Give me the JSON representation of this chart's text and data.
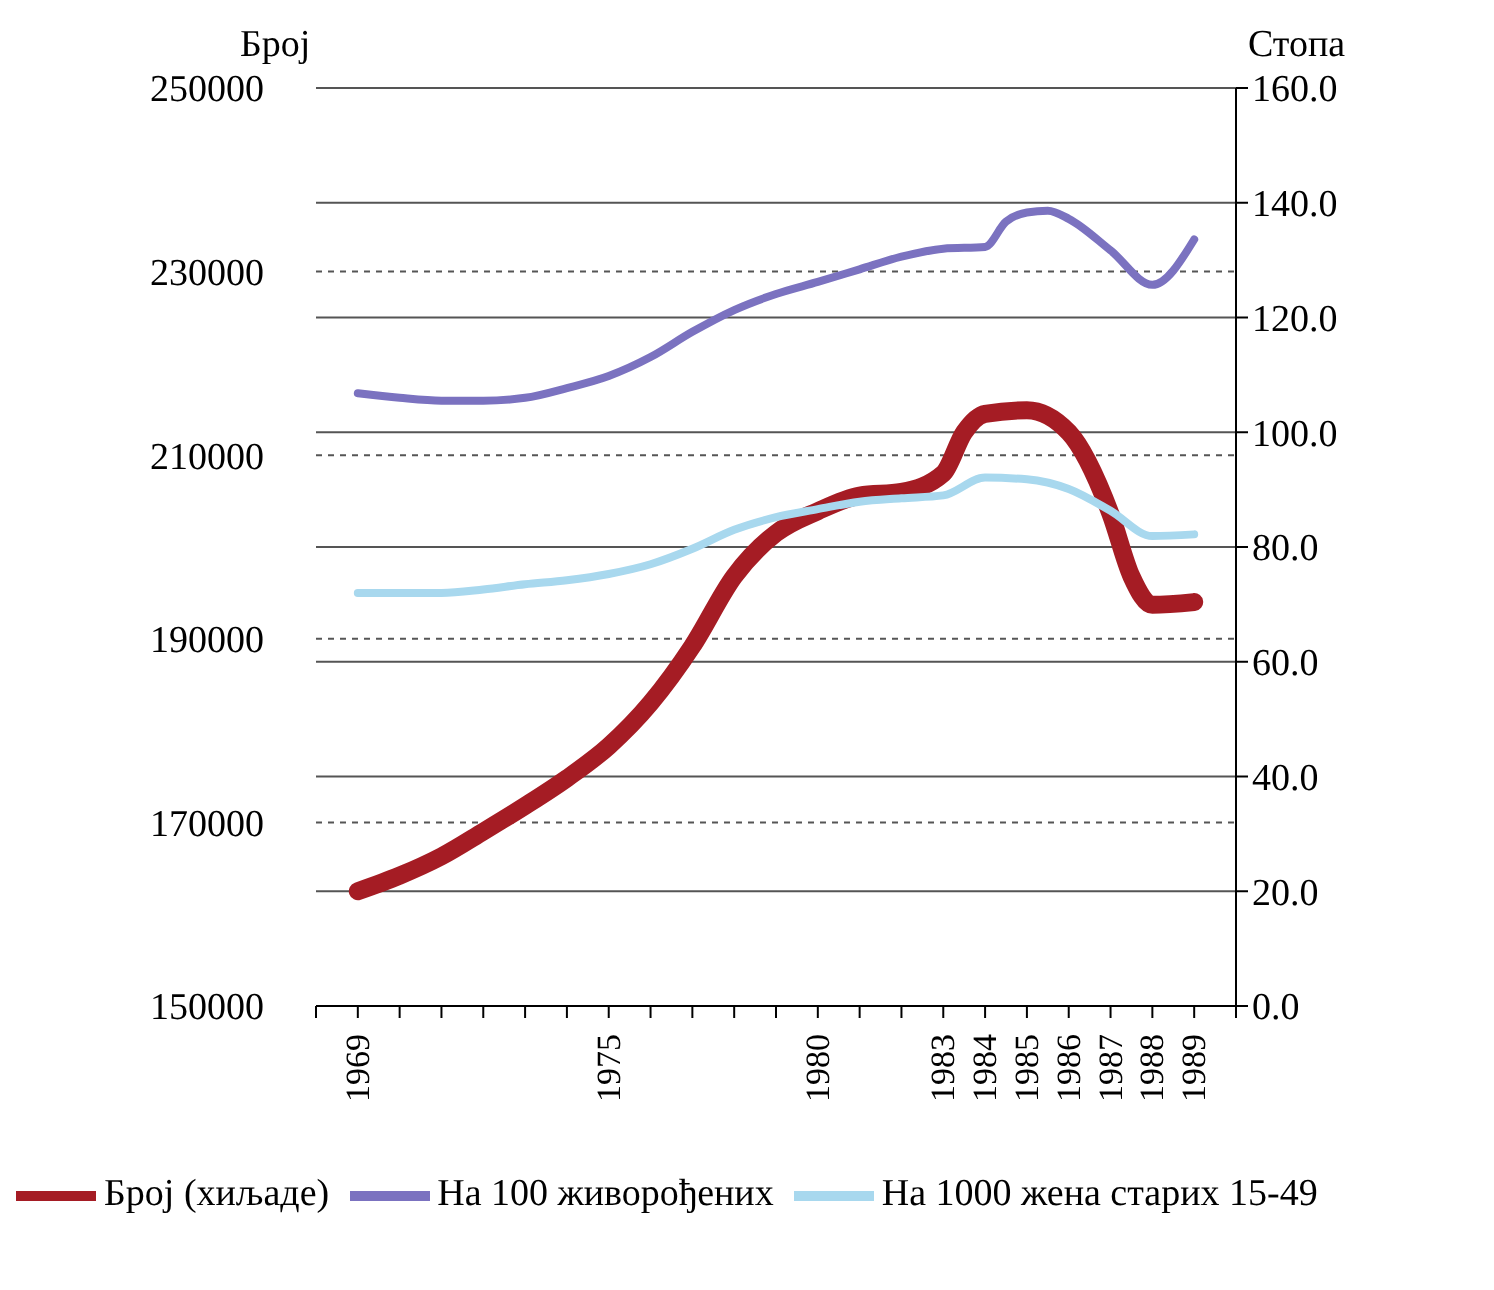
{
  "chart_data": {
    "type": "line",
    "ylabel": "Број",
    "y2label": "Стопа",
    "xlim": [
      1968,
      1990
    ],
    "xticks": [
      {
        "value": 1968,
        "label": null
      },
      {
        "value": 1969,
        "label": "1969"
      },
      {
        "value": 1970,
        "label": null
      },
      {
        "value": 1971,
        "label": null
      },
      {
        "value": 1972,
        "label": null
      },
      {
        "value": 1973,
        "label": null
      },
      {
        "value": 1974,
        "label": null
      },
      {
        "value": 1975,
        "label": "1975"
      },
      {
        "value": 1976,
        "label": null
      },
      {
        "value": 1977,
        "label": null
      },
      {
        "value": 1978,
        "label": null
      },
      {
        "value": 1979,
        "label": null
      },
      {
        "value": 1980,
        "label": "1980"
      },
      {
        "value": 1981,
        "label": null
      },
      {
        "value": 1982,
        "label": null
      },
      {
        "value": 1983,
        "label": "1983"
      },
      {
        "value": 1984,
        "label": "1984"
      },
      {
        "value": 1985,
        "label": "1985"
      },
      {
        "value": 1986,
        "label": "1986"
      },
      {
        "value": 1987,
        "label": "1987"
      },
      {
        "value": 1988,
        "label": "1988"
      },
      {
        "value": 1989,
        "label": "1989"
      },
      {
        "value": 1990,
        "label": null
      }
    ],
    "ylim": [
      150000,
      250000
    ],
    "yticks": [
      150000,
      170000,
      190000,
      210000,
      230000,
      250000
    ],
    "y2lim": [
      0,
      160
    ],
    "y2ticks": [
      {
        "value": 0,
        "label": "0.0"
      },
      {
        "value": 20,
        "label": "20.0"
      },
      {
        "value": 40,
        "label": "40.0"
      },
      {
        "value": 60,
        "label": "60.0"
      },
      {
        "value": 80,
        "label": "80.0"
      },
      {
        "value": 100,
        "label": "100.0"
      },
      {
        "value": 120,
        "label": "120.0"
      },
      {
        "value": 140,
        "label": "140.0"
      },
      {
        "value": 160,
        "label": "160.0"
      }
    ],
    "grid": true,
    "legend": "bottom",
    "marker": "none",
    "line_style": "solid",
    "series": [
      {
        "name": "Број (хиљаде)",
        "color": "#a51c24",
        "x": [
          1969,
          1970,
          1971,
          1972,
          1973,
          1974,
          1975,
          1976,
          1977,
          1978,
          1979,
          1980,
          1981,
          1982,
          1983,
          1983.5,
          1984,
          1985,
          1986,
          1987,
          1987.5,
          1988,
          1989
        ],
        "values": [
          162500,
          164200,
          166300,
          169000,
          171800,
          174800,
          178300,
          183000,
          189200,
          196800,
          201500,
          203900,
          205600,
          206000,
          208000,
          212500,
          214500,
          214900,
          212500,
          203600,
          196800,
          193700,
          194000
        ]
      },
      {
        "name": "На 100 живорођених",
        "color": "#7b72c0",
        "axis": "y2",
        "x": [
          1969,
          1970,
          1971,
          1972,
          1973,
          1974,
          1975,
          1976,
          1977,
          1978,
          1979,
          1980,
          1981,
          1982,
          1983,
          1984,
          1984.5,
          1985,
          1985.5,
          1986,
          1987,
          1988,
          1989
        ],
        "values": [
          106.8,
          106.0,
          105.5,
          105.5,
          106.0,
          107.7,
          109.8,
          113.1,
          117.5,
          121.3,
          124.1,
          126.2,
          128.4,
          130.6,
          132.0,
          132.3,
          136.7,
          138.3,
          138.6,
          137.2,
          131.7,
          125.7,
          133.6
        ]
      },
      {
        "name": "На 1000 жена старих 15-49",
        "color": "#a8d8ee",
        "axis": "y2",
        "x": [
          1969,
          1970,
          1971,
          1972,
          1973,
          1974,
          1975,
          1976,
          1977,
          1978,
          1979,
          1980,
          1981,
          1982,
          1983,
          1984,
          1985,
          1986,
          1987,
          1988,
          1989
        ],
        "values": [
          72.0,
          72.0,
          72.0,
          72.6,
          73.5,
          74.2,
          75.3,
          77.0,
          79.7,
          83.0,
          85.2,
          86.6,
          87.9,
          88.5,
          89.0,
          92.1,
          91.8,
          90.1,
          86.3,
          81.9,
          82.2
        ]
      }
    ]
  }
}
